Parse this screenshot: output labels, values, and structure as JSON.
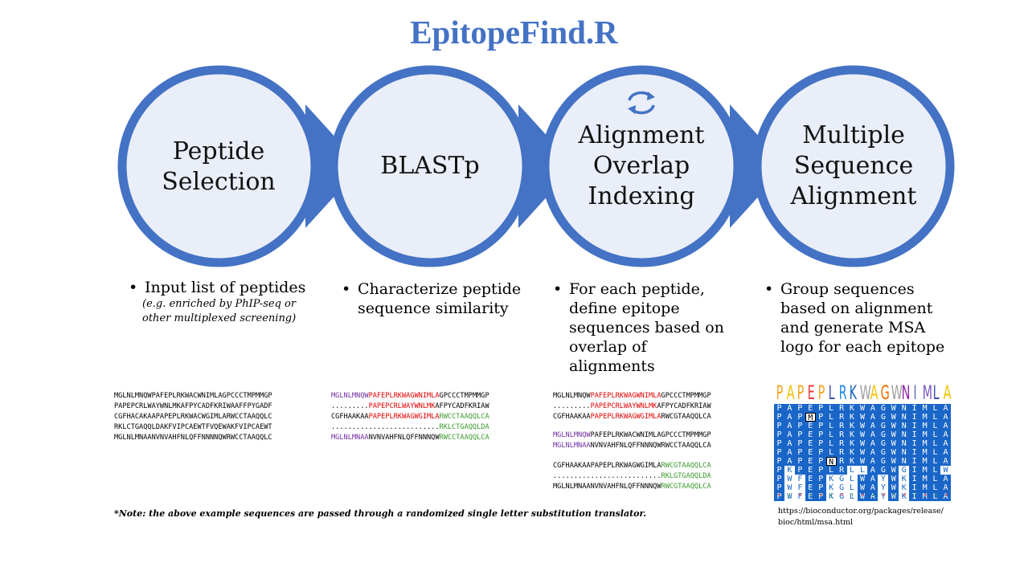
{
  "title": "EpitopeFind.R",
  "colors": {
    "accent": "#4472c4",
    "circle_fill": "#e9eef8"
  },
  "stages": [
    {
      "label": "Peptide Selection"
    },
    {
      "label": "BLASTp"
    },
    {
      "label": "Alignment Overlap Indexing"
    },
    {
      "label": "Multiple Sequence Alignment"
    }
  ],
  "bullets": [
    {
      "text": "Input list of peptides",
      "sub": "(e.g. enriched by PhIP-seq or other multiplexed screening)"
    },
    {
      "text": "Characterize peptide sequence similarity"
    },
    {
      "text": "For each peptide, define epitope sequences based on overlap of alignments"
    },
    {
      "text": "Group sequences based on alignment and generate MSA logo for each epitope"
    }
  ],
  "seq_input": [
    "MGLNLMNQWPAFEPLRKWACWNIMLAGPCCCTMPMMGP",
    "PAPEPCRLWAYWNLMKAFPYCADFKRIWAAFFPYGADF",
    "CGFHACAKAAPAPEPLRKWACWGIMLARWCCTAAQQLC",
    "RKLCTGAQQLDAKFVIPCAEWTFVQEWAKFVIPCAEWT",
    "MGLNLMNAANVNVAHFNLQFFNNNNQWRWCCTAAQQLC"
  ],
  "seq_blast": [
    [
      {
        "t": "MGLNLMNQW",
        "c": "purple"
      },
      {
        "t": "PAFEPLRKWAGWNIMLA",
        "c": "red"
      },
      {
        "t": "GPCCCTMPMMGP",
        "c": "blk"
      }
    ],
    [
      {
        "t": ".........",
        "c": "blk"
      },
      {
        "t": "PAPEPCRLWAYWNLMK",
        "c": "red"
      },
      {
        "t": "AFPYCADFKRIAW",
        "c": "blk"
      }
    ],
    [
      {
        "t": "CGFHAAKAA",
        "c": "blk"
      },
      {
        "t": "PAPEPLRKWAGWGIMLA",
        "c": "red"
      },
      {
        "t": "RWCCTAAQQLCA",
        "c": "green"
      }
    ],
    [
      {
        "t": "..........................",
        "c": "blk"
      },
      {
        "t": "RKLCTGAQQLDA",
        "c": "green"
      }
    ],
    [
      {
        "t": "MGLNLMNAA",
        "c": "purple"
      },
      {
        "t": "NVNVAHFNLQFFNNNQW",
        "c": "blk"
      },
      {
        "t": "RWCCTAAQQLCA",
        "c": "green"
      }
    ]
  ],
  "seq_overlap_1": [
    [
      {
        "t": "MGLNLMNQW",
        "c": "blk"
      },
      {
        "t": "PAFEPLRKWAGWNIMLA",
        "c": "red"
      },
      {
        "t": "GPCCCTMPMMGP",
        "c": "blk"
      }
    ],
    [
      {
        "t": ".........",
        "c": "blk"
      },
      {
        "t": "PAPEPCRLWAYWNLMK",
        "c": "red"
      },
      {
        "t": "AFPYCADFKRIAW",
        "c": "blk"
      }
    ],
    [
      {
        "t": "CGFHAAKAA",
        "c": "blk"
      },
      {
        "t": "PAPEPLRKWAGWGIMLA",
        "c": "red"
      },
      {
        "t": "RWCGTAAQQLCA",
        "c": "blk"
      }
    ]
  ],
  "seq_overlap_2": [
    [
      {
        "t": "MGLNLMNQW",
        "c": "purple"
      },
      {
        "t": "PAFEPLRKWACWNIMLAGPCCCTMPMMGP",
        "c": "blk"
      }
    ],
    [
      {
        "t": "MGLNLMNAA",
        "c": "purple"
      },
      {
        "t": "NVNVAHFNLQFFNNNQWRWCCTAAQQLCA",
        "c": "blk"
      }
    ]
  ],
  "seq_overlap_3": [
    [
      {
        "t": "CGFHAAKAAPAPEPLRKWAGWGIMLA",
        "c": "blk"
      },
      {
        "t": "RWCGTAAQQLCA",
        "c": "green"
      }
    ],
    [
      {
        "t": "..........................",
        "c": "blk"
      },
      {
        "t": "RKLGTGAQQLDA",
        "c": "green"
      }
    ],
    [
      {
        "t": "MGLNLMNAANVNVAHFNLQFFNNNQW",
        "c": "blk"
      },
      {
        "t": "RWCGTAAQQLCA",
        "c": "green"
      }
    ]
  ],
  "msa_logo": "PAPEPLRKWAGWNIMLA",
  "msa_rows": [
    "PAPEPLRKWAGWNIMLA",
    "PAPMPLRKWAGWNIMLA",
    "PAPEPLRKWAGWNIMLA",
    "PAPEPLRKWAGWNIMLA",
    "PAPEPLRKWAGWNIMLA",
    "PAPEPLRKWAGWNIMLA",
    "PAPEPNRKWAGWNIMLA",
    "PKPEPLRLLAGWGIMLW",
    "PWFEPKGLWAYWKIMLA",
    "PWFEPKGLWAYWKIMLA",
    "PWFEPKGLWAYWKIMLA"
  ],
  "msa_consensus": "*!*!*!*!*!*!*!*!*",
  "note": "*Note: the above example sequences are passed through a randomized single letter substitution translator.",
  "url_line1": "https://bioconductor.org/packages/release/",
  "url_line2": "bioc/html/msa.html",
  "icons": {
    "refresh": "refresh-icon"
  }
}
